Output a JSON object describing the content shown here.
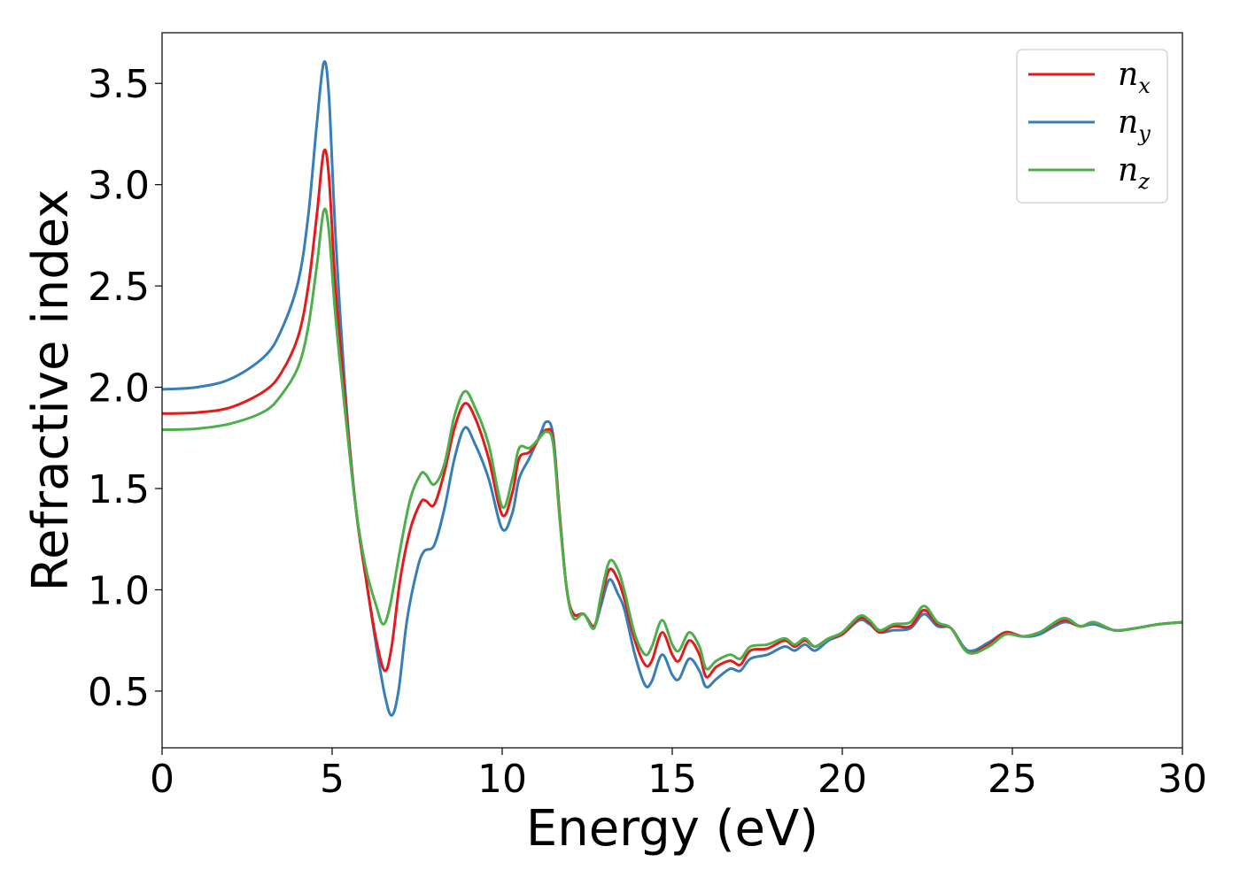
{
  "chart_data": {
    "type": "line",
    "title": "",
    "xlabel": "Energy (eV)",
    "ylabel": "Refractive index",
    "xlim": [
      0,
      30
    ],
    "ylim": [
      0.22,
      3.75
    ],
    "xticks": [
      "0",
      "5",
      "10",
      "15",
      "20",
      "25",
      "30"
    ],
    "yticks": [
      "0.5",
      "1.0",
      "1.5",
      "2.0",
      "2.5",
      "3.0",
      "3.5"
    ],
    "grid": false,
    "legend_position": "top-right",
    "series": [
      {
        "name": "n",
        "subscript": "x",
        "color": "#e41a1c",
        "points": [
          [
            0,
            1.87
          ],
          [
            1,
            1.875
          ],
          [
            2,
            1.9
          ],
          [
            3,
            1.98
          ],
          [
            3.5,
            2.07
          ],
          [
            4,
            2.25
          ],
          [
            4.3,
            2.5
          ],
          [
            4.55,
            2.85
          ],
          [
            4.75,
            3.16
          ],
          [
            4.9,
            3.05
          ],
          [
            5.1,
            2.5
          ],
          [
            5.4,
            1.9
          ],
          [
            5.7,
            1.4
          ],
          [
            6.0,
            1.05
          ],
          [
            6.3,
            0.75
          ],
          [
            6.55,
            0.6
          ],
          [
            6.75,
            0.72
          ],
          [
            7.0,
            1.05
          ],
          [
            7.3,
            1.3
          ],
          [
            7.6,
            1.43
          ],
          [
            7.75,
            1.44
          ],
          [
            8.0,
            1.42
          ],
          [
            8.3,
            1.58
          ],
          [
            8.6,
            1.8
          ],
          [
            8.9,
            1.92
          ],
          [
            9.2,
            1.85
          ],
          [
            9.6,
            1.65
          ],
          [
            10.0,
            1.37
          ],
          [
            10.3,
            1.48
          ],
          [
            10.5,
            1.65
          ],
          [
            10.8,
            1.68
          ],
          [
            11.1,
            1.75
          ],
          [
            11.3,
            1.79
          ],
          [
            11.5,
            1.74
          ],
          [
            11.7,
            1.35
          ],
          [
            11.9,
            1.0
          ],
          [
            12.1,
            0.88
          ],
          [
            12.4,
            0.88
          ],
          [
            12.7,
            0.82
          ],
          [
            12.9,
            0.95
          ],
          [
            13.15,
            1.1
          ],
          [
            13.4,
            1.05
          ],
          [
            13.6,
            0.95
          ],
          [
            13.9,
            0.75
          ],
          [
            14.2,
            0.63
          ],
          [
            14.4,
            0.65
          ],
          [
            14.7,
            0.79
          ],
          [
            15.0,
            0.68
          ],
          [
            15.2,
            0.65
          ],
          [
            15.5,
            0.75
          ],
          [
            15.8,
            0.68
          ],
          [
            16.0,
            0.57
          ],
          [
            16.3,
            0.62
          ],
          [
            16.7,
            0.65
          ],
          [
            17.0,
            0.63
          ],
          [
            17.3,
            0.7
          ],
          [
            17.8,
            0.71
          ],
          [
            18.3,
            0.75
          ],
          [
            18.6,
            0.72
          ],
          [
            18.9,
            0.75
          ],
          [
            19.2,
            0.72
          ],
          [
            19.6,
            0.76
          ],
          [
            20.0,
            0.78
          ],
          [
            20.5,
            0.86
          ],
          [
            20.8,
            0.84
          ],
          [
            21.1,
            0.79
          ],
          [
            21.5,
            0.82
          ],
          [
            22.0,
            0.82
          ],
          [
            22.4,
            0.9
          ],
          [
            22.8,
            0.83
          ],
          [
            23.2,
            0.81
          ],
          [
            23.7,
            0.69
          ],
          [
            24.3,
            0.73
          ],
          [
            24.8,
            0.79
          ],
          [
            25.3,
            0.77
          ],
          [
            25.8,
            0.79
          ],
          [
            26.5,
            0.85
          ],
          [
            27.0,
            0.82
          ],
          [
            27.4,
            0.84
          ],
          [
            28.0,
            0.8
          ],
          [
            28.6,
            0.81
          ],
          [
            29.3,
            0.83
          ],
          [
            30,
            0.84
          ]
        ]
      },
      {
        "name": "n",
        "subscript": "y",
        "color": "#377eb8",
        "points": [
          [
            0,
            1.99
          ],
          [
            1,
            2.0
          ],
          [
            2,
            2.04
          ],
          [
            3,
            2.15
          ],
          [
            3.5,
            2.28
          ],
          [
            4,
            2.52
          ],
          [
            4.3,
            2.85
          ],
          [
            4.55,
            3.3
          ],
          [
            4.75,
            3.6
          ],
          [
            4.9,
            3.45
          ],
          [
            5.1,
            2.75
          ],
          [
            5.4,
            1.95
          ],
          [
            5.7,
            1.4
          ],
          [
            6.0,
            1.05
          ],
          [
            6.3,
            0.72
          ],
          [
            6.55,
            0.48
          ],
          [
            6.75,
            0.38
          ],
          [
            6.95,
            0.5
          ],
          [
            7.2,
            0.85
          ],
          [
            7.5,
            1.1
          ],
          [
            7.7,
            1.19
          ],
          [
            8.0,
            1.22
          ],
          [
            8.3,
            1.4
          ],
          [
            8.6,
            1.65
          ],
          [
            8.9,
            1.8
          ],
          [
            9.2,
            1.72
          ],
          [
            9.6,
            1.55
          ],
          [
            10.0,
            1.3
          ],
          [
            10.3,
            1.38
          ],
          [
            10.5,
            1.55
          ],
          [
            10.8,
            1.65
          ],
          [
            11.1,
            1.76
          ],
          [
            11.3,
            1.83
          ],
          [
            11.5,
            1.76
          ],
          [
            11.7,
            1.35
          ],
          [
            11.9,
            1.0
          ],
          [
            12.1,
            0.88
          ],
          [
            12.4,
            0.88
          ],
          [
            12.7,
            0.82
          ],
          [
            12.9,
            0.92
          ],
          [
            13.15,
            1.05
          ],
          [
            13.4,
            0.98
          ],
          [
            13.6,
            0.9
          ],
          [
            13.9,
            0.68
          ],
          [
            14.2,
            0.53
          ],
          [
            14.4,
            0.55
          ],
          [
            14.7,
            0.68
          ],
          [
            15.0,
            0.58
          ],
          [
            15.2,
            0.56
          ],
          [
            15.5,
            0.66
          ],
          [
            15.8,
            0.6
          ],
          [
            16.0,
            0.52
          ],
          [
            16.3,
            0.56
          ],
          [
            16.7,
            0.61
          ],
          [
            17.0,
            0.6
          ],
          [
            17.3,
            0.66
          ],
          [
            17.8,
            0.68
          ],
          [
            18.3,
            0.72
          ],
          [
            18.6,
            0.7
          ],
          [
            18.9,
            0.73
          ],
          [
            19.2,
            0.7
          ],
          [
            19.6,
            0.75
          ],
          [
            20.0,
            0.78
          ],
          [
            20.5,
            0.85
          ],
          [
            20.8,
            0.83
          ],
          [
            21.1,
            0.79
          ],
          [
            21.5,
            0.8
          ],
          [
            22.0,
            0.81
          ],
          [
            22.4,
            0.88
          ],
          [
            22.8,
            0.82
          ],
          [
            23.2,
            0.81
          ],
          [
            23.7,
            0.7
          ],
          [
            24.3,
            0.74
          ],
          [
            24.8,
            0.79
          ],
          [
            25.3,
            0.77
          ],
          [
            25.8,
            0.78
          ],
          [
            26.5,
            0.84
          ],
          [
            27.0,
            0.82
          ],
          [
            27.4,
            0.83
          ],
          [
            28.0,
            0.8
          ],
          [
            28.6,
            0.81
          ],
          [
            29.3,
            0.83
          ],
          [
            30,
            0.84
          ]
        ]
      },
      {
        "name": "n",
        "subscript": "z",
        "color": "#4daf4a",
        "points": [
          [
            0,
            1.79
          ],
          [
            1,
            1.795
          ],
          [
            2,
            1.82
          ],
          [
            3,
            1.88
          ],
          [
            3.5,
            1.96
          ],
          [
            4,
            2.1
          ],
          [
            4.3,
            2.3
          ],
          [
            4.55,
            2.6
          ],
          [
            4.75,
            2.87
          ],
          [
            4.9,
            2.78
          ],
          [
            5.1,
            2.35
          ],
          [
            5.4,
            1.85
          ],
          [
            5.7,
            1.4
          ],
          [
            6.0,
            1.1
          ],
          [
            6.3,
            0.92
          ],
          [
            6.5,
            0.83
          ],
          [
            6.7,
            0.92
          ],
          [
            7.0,
            1.2
          ],
          [
            7.3,
            1.45
          ],
          [
            7.6,
            1.57
          ],
          [
            7.75,
            1.57
          ],
          [
            8.0,
            1.52
          ],
          [
            8.3,
            1.62
          ],
          [
            8.6,
            1.86
          ],
          [
            8.9,
            1.98
          ],
          [
            9.2,
            1.9
          ],
          [
            9.6,
            1.72
          ],
          [
            10.0,
            1.41
          ],
          [
            10.3,
            1.55
          ],
          [
            10.5,
            1.7
          ],
          [
            10.8,
            1.7
          ],
          [
            11.1,
            1.75
          ],
          [
            11.3,
            1.78
          ],
          [
            11.5,
            1.72
          ],
          [
            11.7,
            1.33
          ],
          [
            11.9,
            1.0
          ],
          [
            12.1,
            0.86
          ],
          [
            12.4,
            0.88
          ],
          [
            12.7,
            0.81
          ],
          [
            12.9,
            0.97
          ],
          [
            13.15,
            1.14
          ],
          [
            13.4,
            1.1
          ],
          [
            13.6,
            0.99
          ],
          [
            13.9,
            0.78
          ],
          [
            14.2,
            0.68
          ],
          [
            14.4,
            0.72
          ],
          [
            14.7,
            0.85
          ],
          [
            15.0,
            0.73
          ],
          [
            15.2,
            0.7
          ],
          [
            15.5,
            0.79
          ],
          [
            15.8,
            0.72
          ],
          [
            16.0,
            0.61
          ],
          [
            16.3,
            0.65
          ],
          [
            16.7,
            0.68
          ],
          [
            17.0,
            0.66
          ],
          [
            17.3,
            0.72
          ],
          [
            17.8,
            0.73
          ],
          [
            18.3,
            0.76
          ],
          [
            18.6,
            0.73
          ],
          [
            18.9,
            0.76
          ],
          [
            19.2,
            0.72
          ],
          [
            19.6,
            0.76
          ],
          [
            20.0,
            0.79
          ],
          [
            20.5,
            0.87
          ],
          [
            20.8,
            0.85
          ],
          [
            21.1,
            0.8
          ],
          [
            21.5,
            0.83
          ],
          [
            22.0,
            0.84
          ],
          [
            22.4,
            0.92
          ],
          [
            22.8,
            0.84
          ],
          [
            23.2,
            0.81
          ],
          [
            23.7,
            0.69
          ],
          [
            24.3,
            0.72
          ],
          [
            24.8,
            0.78
          ],
          [
            25.3,
            0.77
          ],
          [
            25.8,
            0.79
          ],
          [
            26.5,
            0.86
          ],
          [
            27.0,
            0.82
          ],
          [
            27.4,
            0.84
          ],
          [
            28.0,
            0.8
          ],
          [
            28.6,
            0.81
          ],
          [
            29.3,
            0.83
          ],
          [
            30,
            0.84
          ]
        ]
      }
    ]
  }
}
